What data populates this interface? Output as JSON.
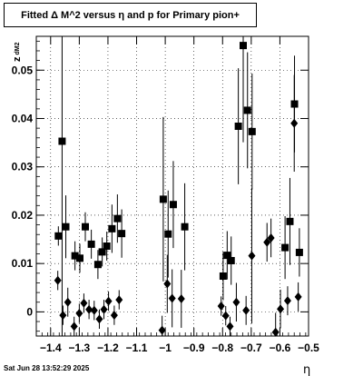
{
  "title": "Fitted Δ M^2 versus η and p for Primary pion+",
  "timestamp": "Sat Jun 28 13:52:29 2025",
  "chart_data": {
    "type": "scatter",
    "xlabel": "η",
    "ylabel": "z_dM2",
    "xlim": [
      -1.45,
      -0.5
    ],
    "ylim": [
      -0.005,
      0.057
    ],
    "grid": true,
    "x_ticks": [
      -1.4,
      -1.3,
      -1.2,
      -1.1,
      -1,
      -0.9,
      -0.8,
      -0.7,
      -0.6,
      -0.5
    ],
    "x_tick_labels": [
      "−1.4",
      "−1.3",
      "−1.2",
      "−1.1",
      "−1",
      "−0.9",
      "−0.8",
      "−0.7",
      "−0.6",
      "−0.5"
    ],
    "y_ticks": [
      0,
      0.01,
      0.02,
      0.03,
      0.04,
      0.05
    ],
    "y_tick_labels": [
      "0",
      "0.01",
      "0.02",
      "0.03",
      "0.04",
      "0.05"
    ],
    "series": [
      {
        "marker": "square",
        "points": [
          {
            "x": -1.373,
            "y": 0.0157,
            "err": 0.002
          },
          {
            "x": -1.36,
            "y": 0.0353,
            "err": 0.052
          },
          {
            "x": -1.347,
            "y": 0.0176,
            "err": 0.0065
          },
          {
            "x": -1.315,
            "y": 0.0116,
            "err": 0.003
          },
          {
            "x": -1.298,
            "y": 0.0111,
            "err": 0.003
          },
          {
            "x": -1.279,
            "y": 0.0176,
            "err": 0.003
          },
          {
            "x": -1.258,
            "y": 0.014,
            "err": 0.003
          },
          {
            "x": -1.235,
            "y": 0.0098,
            "err": 0.003
          },
          {
            "x": -1.22,
            "y": 0.0124,
            "err": 0.003
          },
          {
            "x": -1.204,
            "y": 0.0136,
            "err": 0.003
          },
          {
            "x": -1.186,
            "y": 0.0172,
            "err": 0.005
          },
          {
            "x": -1.167,
            "y": 0.0193,
            "err": 0.005
          },
          {
            "x": -1.152,
            "y": 0.0162,
            "err": 0.005
          },
          {
            "x": -1.007,
            "y": 0.0233,
            "err": 0.017
          },
          {
            "x": -0.99,
            "y": 0.0161,
            "err": 0.009
          },
          {
            "x": -0.972,
            "y": 0.0222,
            "err": 0.009
          },
          {
            "x": -0.932,
            "y": 0.0176,
            "err": 0.009
          },
          {
            "x": -0.798,
            "y": 0.0074,
            "err": 0.005
          },
          {
            "x": -0.784,
            "y": 0.0117,
            "err": 0.005
          },
          {
            "x": -0.77,
            "y": 0.0106,
            "err": 0.005
          },
          {
            "x": -0.745,
            "y": 0.0384,
            "err": 0.012
          },
          {
            "x": -0.728,
            "y": 0.0551,
            "err": 0.02
          },
          {
            "x": -0.713,
            "y": 0.0417,
            "err": 0.012
          },
          {
            "x": -0.697,
            "y": 0.0373,
            "err": 0.012
          },
          {
            "x": -0.582,
            "y": 0.0133,
            "err": 0.0065
          },
          {
            "x": -0.565,
            "y": 0.0187,
            "err": 0.009
          },
          {
            "x": -0.549,
            "y": 0.043,
            "err": 0.01
          },
          {
            "x": -0.532,
            "y": 0.0123,
            "err": 0.005
          }
        ]
      },
      {
        "marker": "diamond",
        "points": [
          {
            "x": -1.375,
            "y": 0.0065,
            "err": 0.002
          },
          {
            "x": -1.357,
            "y": -0.0007,
            "err": 0.002
          },
          {
            "x": -1.34,
            "y": 0.002,
            "err": 0.003
          },
          {
            "x": -1.318,
            "y": -0.003,
            "err": 0.002
          },
          {
            "x": -1.3,
            "y": -0.0003,
            "err": 0.002
          },
          {
            "x": -1.284,
            "y": 0.0018,
            "err": 0.002
          },
          {
            "x": -1.266,
            "y": 0.0005,
            "err": 0.002
          },
          {
            "x": -1.248,
            "y": 0.0003,
            "err": 0.002
          },
          {
            "x": -1.23,
            "y": -0.0015,
            "err": 0.002
          },
          {
            "x": -1.214,
            "y": 0.0005,
            "err": 0.002
          },
          {
            "x": -1.198,
            "y": 0.0022,
            "err": 0.002
          },
          {
            "x": -1.178,
            "y": -0.0007,
            "err": 0.002
          },
          {
            "x": -1.161,
            "y": 0.0025,
            "err": 0.002
          },
          {
            "x": -1.011,
            "y": -0.0038,
            "err": 0.003
          },
          {
            "x": -0.993,
            "y": 0.0058,
            "err": 0.006
          },
          {
            "x": -0.976,
            "y": 0.0028,
            "err": 0.006
          },
          {
            "x": -0.944,
            "y": 0.0027,
            "err": 0.006
          },
          {
            "x": -0.805,
            "y": 0.0012,
            "err": 0.002
          },
          {
            "x": -0.789,
            "y": -0.0008,
            "err": 0.002
          },
          {
            "x": -0.774,
            "y": -0.003,
            "err": 0.002
          },
          {
            "x": -0.752,
            "y": 0.002,
            "err": 0.004
          },
          {
            "x": -0.718,
            "y": 0.0003,
            "err": 0.003
          },
          {
            "x": -0.698,
            "y": 0.0116,
            "err": 0.014
          },
          {
            "x": -0.645,
            "y": 0.0144,
            "err": 0.004
          },
          {
            "x": -0.631,
            "y": 0.0153,
            "err": 0.004
          },
          {
            "x": -0.615,
            "y": -0.0042,
            "err": 0.004
          },
          {
            "x": -0.598,
            "y": 0.0006,
            "err": 0.004
          },
          {
            "x": -0.573,
            "y": 0.0023,
            "err": 0.003
          },
          {
            "x": -0.55,
            "y": 0.039,
            "err": 0.01
          },
          {
            "x": -0.536,
            "y": 0.0031,
            "err": 0.003
          }
        ]
      }
    ]
  }
}
